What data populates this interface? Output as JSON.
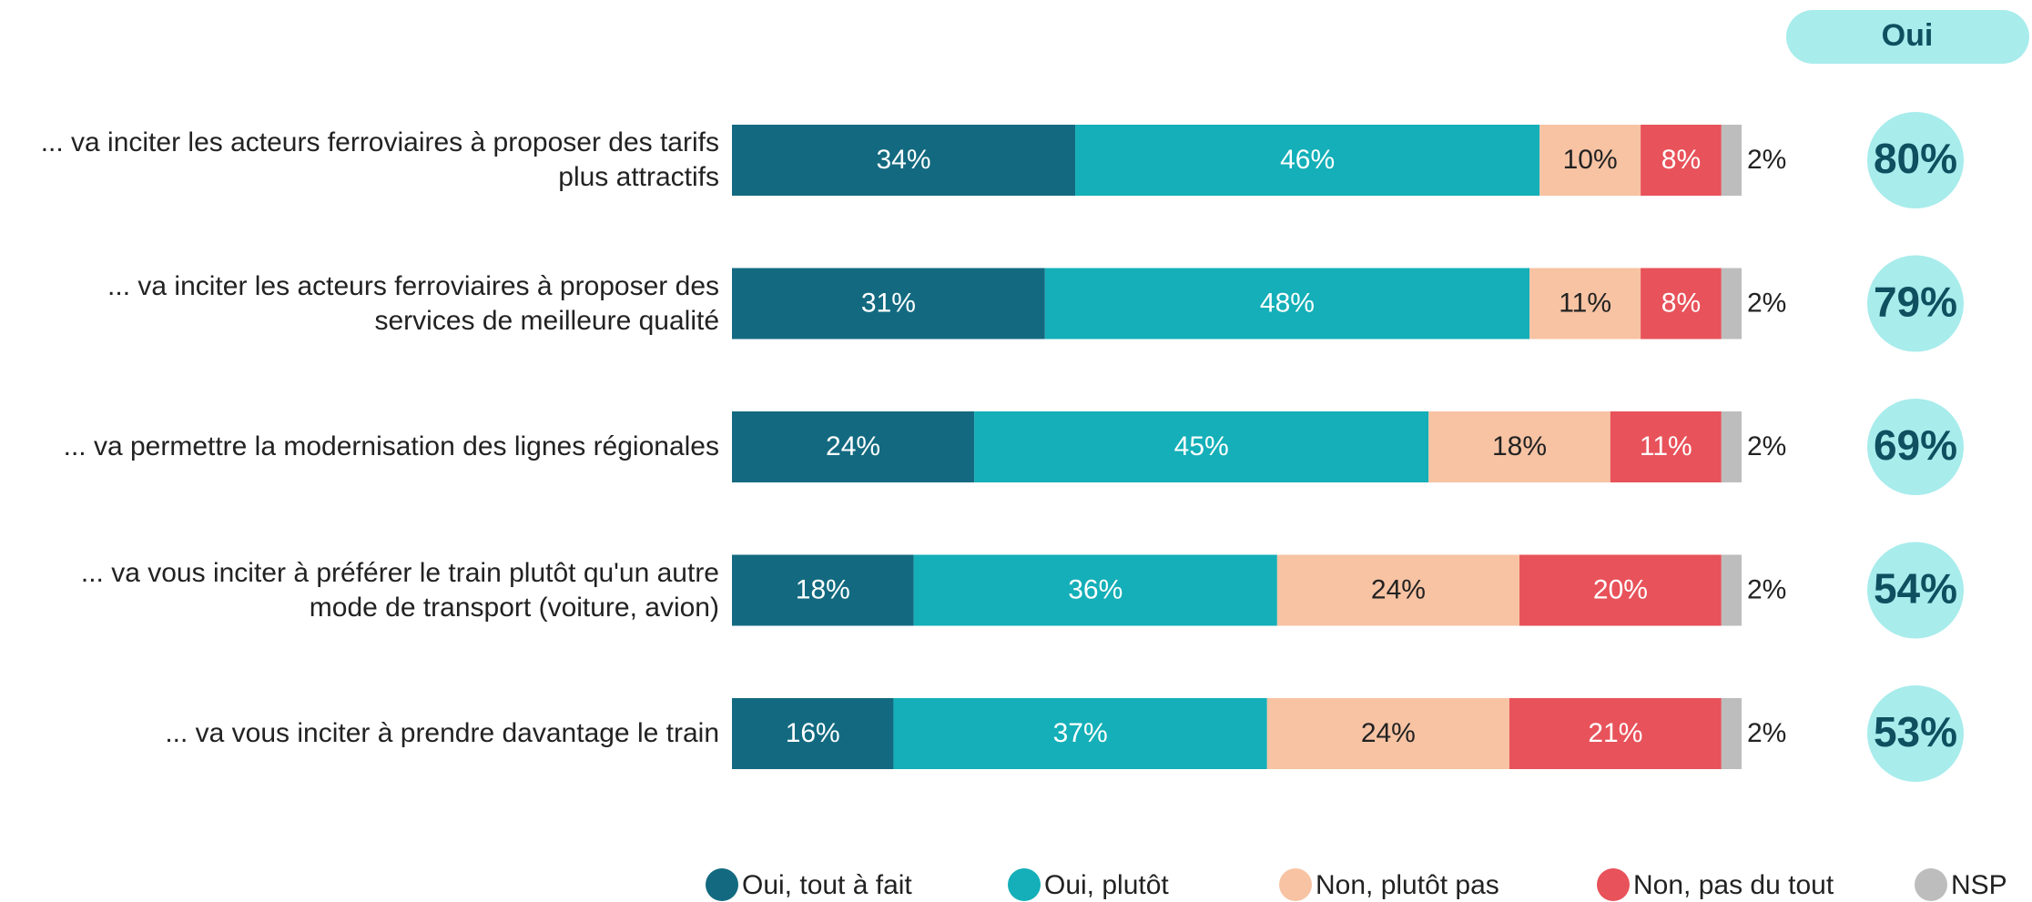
{
  "chart_data": {
    "type": "stacked_bar_horizontal",
    "categories": [
      "... va inciter les acteurs ferroviaires à proposer des tarifs\nplus attractifs",
      "... va inciter les acteurs ferroviaires à proposer des\nservices de meilleure qualité",
      "... va permettre la modernisation des lignes régionales",
      "... va vous inciter à préférer le train plutôt qu'un autre\nmode de transport (voiture, avion)",
      "... va vous inciter à prendre davantage le train"
    ],
    "xlim": [
      0,
      100
    ],
    "series": [
      {
        "name": "Oui, tout à fait",
        "color": "#136a80",
        "values": [
          34,
          31,
          24,
          18,
          16
        ],
        "value_labels": [
          "34%",
          "31%",
          "24%",
          "18%",
          "16%"
        ]
      },
      {
        "name": "Oui, plutôt",
        "color": "#14afb8",
        "values": [
          46,
          48,
          45,
          36,
          37
        ],
        "value_labels": [
          "46%",
          "48%",
          "45%",
          "36%",
          "37%"
        ]
      },
      {
        "name": "Non, plutôt pas",
        "color": "#f7c3a3",
        "values": [
          10,
          11,
          18,
          24,
          24
        ],
        "value_labels": [
          "10%",
          "11%",
          "18%",
          "24%",
          "24%"
        ]
      },
      {
        "name": "Non, pas du tout",
        "color": "#e8525a",
        "values": [
          8,
          8,
          11,
          20,
          21
        ],
        "value_labels": [
          "8%",
          "8%",
          "11%",
          "20%",
          "21%"
        ]
      },
      {
        "name": "NSP",
        "color": "#bdbdbd",
        "values": [
          2,
          2,
          2,
          2,
          2
        ],
        "value_labels": [
          "2%",
          "2%",
          "2%",
          "2%",
          "2%"
        ]
      }
    ],
    "total": {
      "title": "Oui",
      "color": "#a8ecec",
      "values": [
        80,
        79,
        69,
        54,
        53
      ],
      "value_labels": [
        "80%",
        "79%",
        "69%",
        "54%",
        "53%"
      ]
    }
  }
}
